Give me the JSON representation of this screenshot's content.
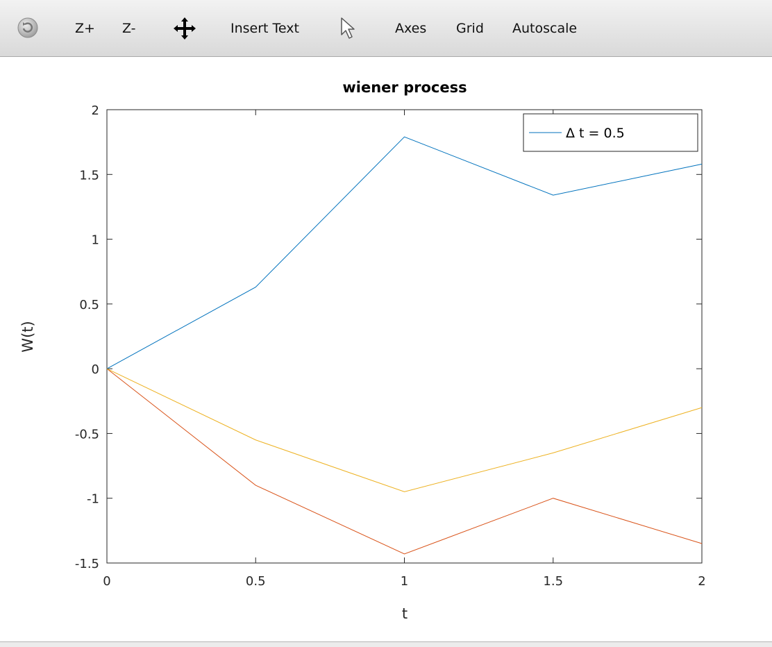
{
  "toolbar": {
    "rotate_icon": "rotate-icon",
    "zoom_in_label": "Z+",
    "zoom_out_label": "Z-",
    "pan_icon": "pan-icon",
    "insert_text_label": "Insert Text",
    "select_icon": "cursor-icon",
    "axes_label": "Axes",
    "grid_label": "Grid",
    "autoscale_label": "Autoscale"
  },
  "chart_data": {
    "type": "line",
    "title": "wiener process",
    "xlabel": "t",
    "ylabel": "W(t)",
    "xlim": [
      0,
      2
    ],
    "ylim": [
      -1.5,
      2
    ],
    "xticks": [
      0,
      0.5,
      1,
      1.5,
      2
    ],
    "xtick_labels": [
      "0",
      "0.5",
      "1",
      "1.5",
      "2"
    ],
    "yticks": [
      -1.5,
      -1,
      -0.5,
      0,
      0.5,
      1,
      1.5,
      2
    ],
    "ytick_labels": [
      "-1.5",
      "-1",
      "-0.5",
      "0",
      "0.5",
      "1",
      "1.5",
      "2"
    ],
    "grid": false,
    "legend_position": "top-right",
    "x": [
      0,
      0.5,
      1,
      1.5,
      2
    ],
    "series": [
      {
        "name": "Δ t = 0.5",
        "color": "#0072bd",
        "values": [
          0,
          0.63,
          1.79,
          1.34,
          1.58
        ],
        "in_legend": true
      },
      {
        "color": "#d95319",
        "values": [
          0,
          -0.9,
          -1.43,
          -1.0,
          -1.35
        ],
        "in_legend": false
      },
      {
        "color": "#edb120",
        "values": [
          0,
          -0.55,
          -0.95,
          -0.65,
          -0.3
        ],
        "in_legend": false
      }
    ]
  }
}
